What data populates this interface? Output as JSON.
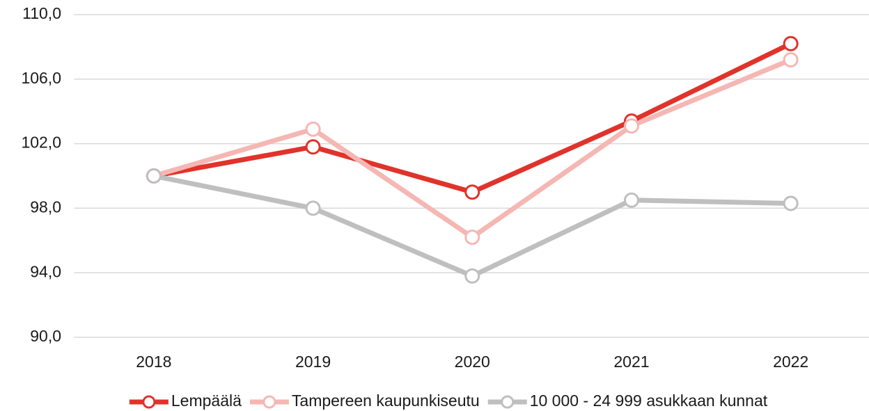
{
  "chart_data": {
    "type": "line",
    "categories": [
      "2018",
      "2019",
      "2020",
      "2021",
      "2022"
    ],
    "series": [
      {
        "name": "Lempäälä",
        "color": "#e0332b",
        "values": [
          100.0,
          101.8,
          99.0,
          103.4,
          108.2
        ]
      },
      {
        "name": "Tampereen kaupunkiseutu",
        "color": "#f5b7b3",
        "values": [
          100.0,
          102.9,
          96.2,
          103.1,
          107.2
        ]
      },
      {
        "name": "10 000 - 24 999 asukkaan kunnat",
        "color": "#bfbfbf",
        "values": [
          100.0,
          98.0,
          93.8,
          98.5,
          98.3
        ]
      }
    ],
    "ylim": [
      90,
      110
    ],
    "yticks": [
      {
        "value": 90,
        "label": "90,0"
      },
      {
        "value": 94,
        "label": "94,0"
      },
      {
        "value": 98,
        "label": "98,0"
      },
      {
        "value": 102,
        "label": "102,0"
      },
      {
        "value": 106,
        "label": "106,0"
      },
      {
        "value": 110,
        "label": "110,0"
      }
    ],
    "grid": true,
    "legend": "bottom"
  }
}
